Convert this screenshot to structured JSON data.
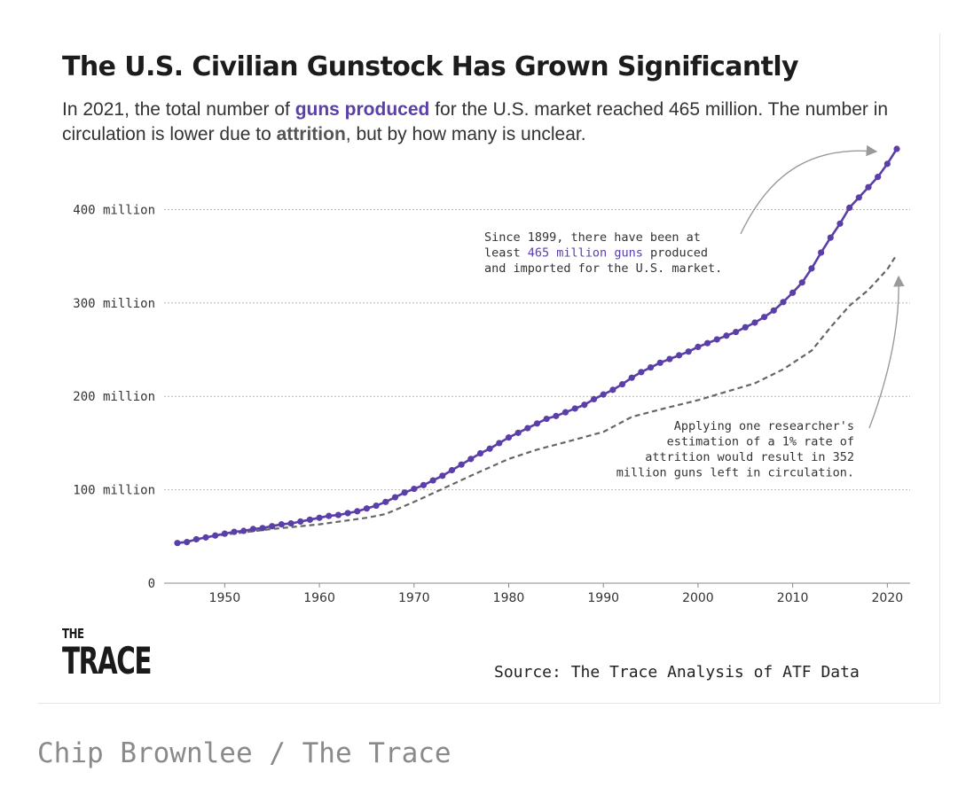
{
  "title": "The U.S. Civilian Gunstock Has Grown Significantly",
  "subtitle": {
    "part1": "In 2021, the total number of ",
    "highlight1": "guns produced",
    "part2": " for the U.S. market reached 465 million. The number in circulation is lower due to ",
    "highlight2": "attrition",
    "part3": ", but by how many is unclear."
  },
  "colors": {
    "produced": "#5b3fa8",
    "attrition": "#666666",
    "gridline": "#b5b5b5",
    "arrow": "#9a9a9a"
  },
  "chart_data": {
    "type": "line",
    "xlim": [
      1945,
      2021
    ],
    "ylim": [
      0,
      465
    ],
    "y_unit": "million",
    "x_ticks": [
      1950,
      1960,
      1970,
      1980,
      1990,
      2000,
      2010,
      2020
    ],
    "x_tick_labels": [
      "1950",
      "1960",
      "1970",
      "1980",
      "1990",
      "2000",
      "2010",
      "2020"
    ],
    "y_ticks": [
      0,
      100,
      200,
      300,
      400
    ],
    "y_tick_labels": [
      "0",
      "100 million",
      "200 million",
      "300 million",
      "400 million"
    ],
    "grid": "horizontal dotted",
    "series": [
      {
        "style": "line-with-markers",
        "x": [
          1945,
          1946,
          1947,
          1948,
          1949,
          1950,
          1951,
          1952,
          1953,
          1954,
          1955,
          1956,
          1957,
          1958,
          1959,
          1960,
          1961,
          1962,
          1963,
          1964,
          1965,
          1966,
          1967,
          1968,
          1969,
          1970,
          1971,
          1972,
          1973,
          1974,
          1975,
          1976,
          1977,
          1978,
          1979,
          1980,
          1981,
          1982,
          1983,
          1984,
          1985,
          1986,
          1987,
          1988,
          1989,
          1990,
          1991,
          1992,
          1993,
          1994,
          1995,
          1996,
          1997,
          1998,
          1999,
          2000,
          2001,
          2002,
          2003,
          2004,
          2005,
          2006,
          2007,
          2008,
          2009,
          2010,
          2011,
          2012,
          2013,
          2014,
          2015,
          2016,
          2017,
          2018,
          2019,
          2020,
          2021
        ],
        "y": [
          43,
          44,
          47,
          49,
          51,
          53,
          55,
          56,
          58,
          59,
          61,
          63,
          64,
          66,
          68,
          70,
          72,
          73,
          75,
          77,
          80,
          83,
          87,
          92,
          97,
          101,
          105,
          110,
          115,
          121,
          127,
          133,
          139,
          144,
          150,
          156,
          161,
          166,
          171,
          176,
          179,
          183,
          187,
          191,
          197,
          202,
          207,
          213,
          220,
          226,
          231,
          236,
          240,
          244,
          248,
          253,
          257,
          261,
          265,
          269,
          274,
          279,
          285,
          292,
          301,
          311,
          322,
          337,
          354,
          370,
          385,
          402,
          413,
          424,
          435,
          449,
          465
        ]
      },
      {
        "style": "dashed",
        "x": [
          1945,
          1950,
          1955,
          1960,
          1965,
          1967,
          1970,
          1973,
          1976,
          1980,
          1983,
          1986,
          1990,
          1993,
          1996,
          2000,
          2003,
          2006,
          2009,
          2012,
          2014,
          2016,
          2018,
          2020,
          2021
        ],
        "y": [
          43,
          52,
          58,
          63,
          70,
          74,
          87,
          101,
          115,
          133,
          143,
          151,
          162,
          178,
          186,
          196,
          205,
          214,
          229,
          249,
          274,
          297,
          314,
          336,
          352
        ]
      }
    ],
    "annotations": [
      {
        "lines": [
          [
            {
              "t": "Since 1899, there have been at",
              "c": ""
            }
          ],
          [
            {
              "t": "least ",
              "c": ""
            },
            {
              "t": "465 million guns",
              "c": "purple"
            },
            {
              "t": " produced",
              "c": ""
            }
          ],
          [
            {
              "t": "and imported for the U.S. market.",
              "c": ""
            }
          ]
        ]
      },
      {
        "lines": [
          [
            {
              "t": "Applying one researcher's",
              "c": ""
            }
          ],
          [
            {
              "t": "estimation of a 1% rate of",
              "c": ""
            }
          ],
          [
            {
              "t": "attrition would result in 352",
              "c": ""
            }
          ],
          [
            {
              "t": "million guns left in circulation.",
              "c": ""
            }
          ]
        ]
      }
    ]
  },
  "logo": {
    "the": "THE",
    "trace": "TRACE"
  },
  "source": "Source: The Trace Analysis of ATF Data",
  "credit": "Chip Brownlee / The Trace"
}
